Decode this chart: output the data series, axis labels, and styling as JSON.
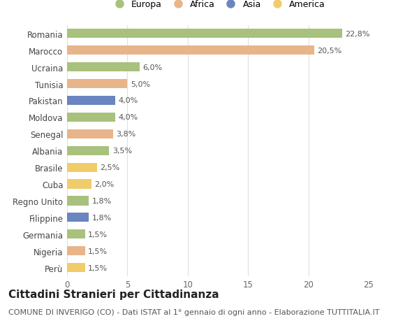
{
  "countries": [
    "Romania",
    "Marocco",
    "Ucraina",
    "Tunisia",
    "Pakistan",
    "Moldova",
    "Senegal",
    "Albania",
    "Brasile",
    "Cuba",
    "Regno Unito",
    "Filippine",
    "Germania",
    "Nigeria",
    "Perù"
  ],
  "values": [
    22.8,
    20.5,
    6.0,
    5.0,
    4.0,
    4.0,
    3.8,
    3.5,
    2.5,
    2.0,
    1.8,
    1.8,
    1.5,
    1.5,
    1.5
  ],
  "labels": [
    "22,8%",
    "20,5%",
    "6,0%",
    "5,0%",
    "4,0%",
    "4,0%",
    "3,8%",
    "3,5%",
    "2,5%",
    "2,0%",
    "1,8%",
    "1,8%",
    "1,5%",
    "1,5%",
    "1,5%"
  ],
  "continents": [
    "Europa",
    "Africa",
    "Europa",
    "Africa",
    "Asia",
    "Europa",
    "Africa",
    "Europa",
    "America",
    "America",
    "Europa",
    "Asia",
    "Europa",
    "Africa",
    "America"
  ],
  "continent_colors": {
    "Europa": "#a8c17c",
    "Africa": "#e8b48a",
    "Asia": "#6b85c0",
    "America": "#f0cc6a"
  },
  "legend_order": [
    "Europa",
    "Africa",
    "Asia",
    "America"
  ],
  "title": "Cittadini Stranieri per Cittadinanza",
  "subtitle": "COMUNE DI INVERIGO (CO) - Dati ISTAT al 1° gennaio di ogni anno - Elaborazione TUTTITALIA.IT",
  "xlim": [
    0,
    25
  ],
  "xticks": [
    0,
    5,
    10,
    15,
    20,
    25
  ],
  "background_color": "#ffffff",
  "grid_color": "#e0e0e0",
  "title_fontsize": 11,
  "subtitle_fontsize": 8,
  "tick_fontsize": 8.5,
  "label_fontsize": 8
}
